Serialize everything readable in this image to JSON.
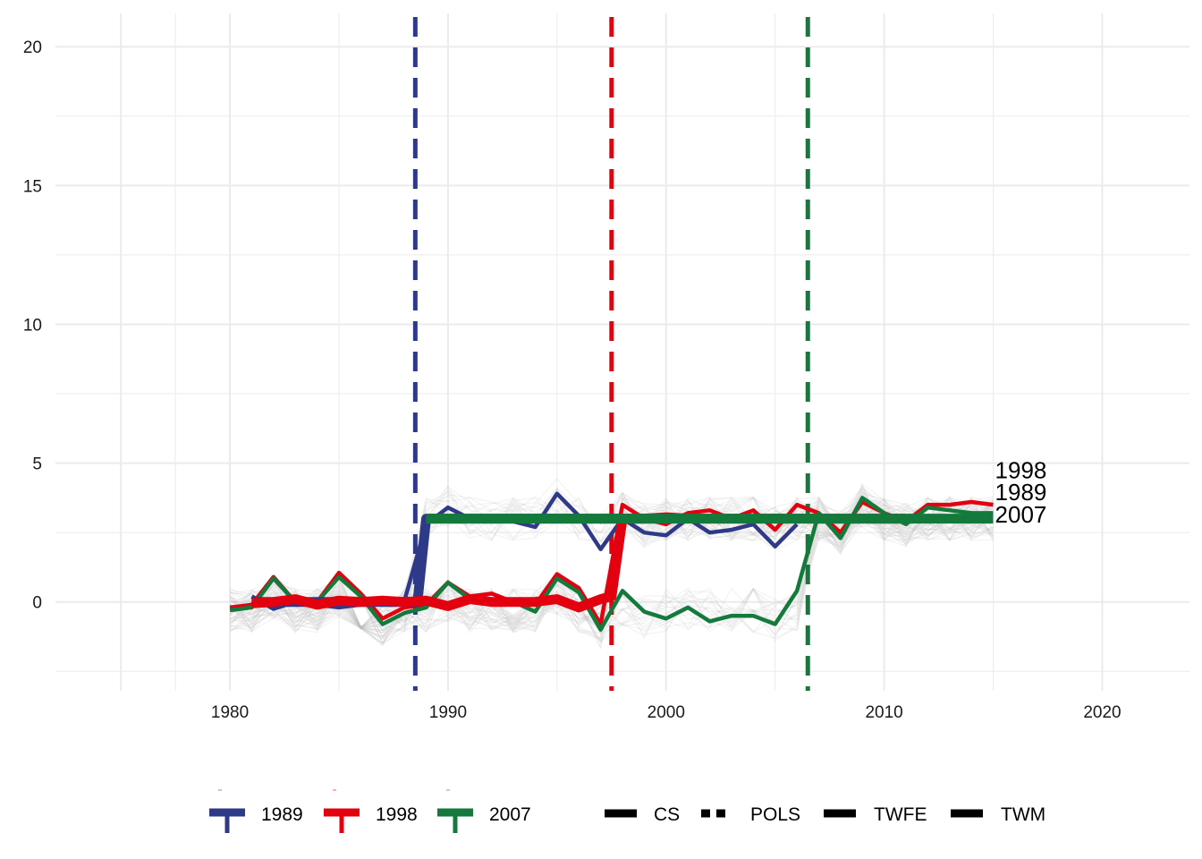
{
  "chart_data": {
    "type": "line",
    "title": "",
    "xlabel": "",
    "ylabel": "",
    "xlim": [
      1972,
      2024
    ],
    "ylim": [
      -3.2,
      21.2
    ],
    "x_ticks": [
      1980,
      1990,
      2000,
      2010,
      2020
    ],
    "y_ticks": [
      0,
      5,
      10,
      15,
      20
    ],
    "x_tick_labels": [
      "1980",
      "1990",
      "2000",
      "2010",
      "2020"
    ],
    "y_tick_labels": [
      "0",
      "5",
      "10",
      "15",
      "20"
    ],
    "grid": true,
    "legend_position": "bottom",
    "background_series": {
      "description_hidden": true,
      "count": 60,
      "color": "#bdbdbd",
      "x_start": 1980,
      "x_end": 2015
    },
    "series": [
      {
        "name": "1989",
        "color": "#2e3a87",
        "x": [
          1981,
          1982,
          1983,
          1984,
          1985,
          1986,
          1987,
          1988,
          1989,
          1990,
          1991,
          1992,
          1993,
          1994,
          1995,
          1996,
          1997,
          1998,
          1999,
          2000,
          2001,
          2002,
          2003,
          2004,
          2005,
          2006
        ],
        "y": [
          0.2,
          -0.25,
          0.0,
          -0.1,
          -0.2,
          -0.1,
          0.1,
          0.05,
          2.8,
          3.4,
          3.0,
          2.9,
          2.9,
          2.7,
          3.9,
          3.1,
          1.9,
          3.0,
          2.5,
          2.4,
          3.0,
          2.5,
          2.6,
          2.8,
          2.0,
          2.8
        ]
      },
      {
        "name": "1998",
        "color": "#e3000f",
        "x": [
          1980,
          1981,
          1982,
          1983,
          1984,
          1985,
          1986,
          1987,
          1988,
          1989,
          1990,
          1991,
          1992,
          1993,
          1994,
          1995,
          1996,
          1997,
          1998,
          1999,
          2000,
          2001,
          2002,
          2003,
          2004,
          2005,
          2006,
          2007,
          2008,
          2009,
          2010,
          2011,
          2012,
          2013,
          2014,
          2015
        ],
        "y": [
          -0.2,
          -0.1,
          0.9,
          0.0,
          0.0,
          1.05,
          0.3,
          -0.6,
          -0.2,
          -0.1,
          0.7,
          0.2,
          0.3,
          0.0,
          -0.1,
          1.0,
          0.5,
          -0.8,
          3.5,
          3.0,
          2.8,
          3.2,
          3.3,
          3.0,
          3.3,
          2.6,
          3.5,
          3.2,
          2.5,
          3.6,
          3.2,
          2.9,
          3.5,
          3.5,
          3.6,
          3.5
        ]
      },
      {
        "name": "2007",
        "color": "#137a3c",
        "x": [
          1980,
          1981,
          1982,
          1983,
          1984,
          1985,
          1986,
          1987,
          1988,
          1989,
          1990,
          1991,
          1992,
          1993,
          1994,
          1995,
          1996,
          1997,
          1998,
          1999,
          2000,
          2001,
          2002,
          2003,
          2004,
          2005,
          2006,
          2007,
          2008,
          2009,
          2010,
          2011,
          2012,
          2013,
          2014,
          2015
        ],
        "y": [
          -0.3,
          -0.2,
          0.85,
          0.0,
          0.0,
          0.9,
          0.2,
          -0.8,
          -0.4,
          -0.2,
          0.7,
          0.1,
          0.1,
          0.0,
          -0.35,
          0.85,
          0.35,
          -1.0,
          0.4,
          -0.35,
          -0.6,
          -0.2,
          -0.7,
          -0.5,
          -0.5,
          -0.8,
          0.4,
          3.2,
          2.3,
          3.75,
          3.2,
          2.8,
          3.4,
          3.3,
          3.2,
          3.2
        ]
      }
    ],
    "estimate_segments": [
      {
        "name": "1989",
        "color": "#2e3a87",
        "x": [
          1981,
          1982,
          1983,
          1984,
          1985,
          1986,
          1987,
          1988,
          1988.6,
          1989,
          1990,
          1991,
          1992,
          1993,
          1994,
          1995,
          1996,
          1997,
          1998,
          1999,
          2000
        ],
        "y": [
          0,
          0,
          0,
          0,
          0,
          0,
          0,
          0,
          0,
          3,
          3,
          3,
          3,
          3,
          3,
          3,
          3,
          3,
          3,
          3,
          3
        ]
      },
      {
        "name": "1998",
        "color": "#e3000f",
        "x": [
          1981,
          1982,
          1983,
          1984,
          1985,
          1986,
          1987,
          1988,
          1989,
          1990,
          1991,
          1992,
          1993,
          1994,
          1995,
          1996,
          1997,
          1997.5,
          1998,
          1999,
          2000,
          2001,
          2002,
          2003,
          2004,
          2005,
          2006,
          2007,
          2008,
          2009,
          2010,
          2011
        ],
        "y": [
          -0.05,
          0.0,
          0.1,
          -0.1,
          0.05,
          0.0,
          0.05,
          0.0,
          0.05,
          -0.15,
          0.1,
          0.0,
          0.0,
          0.0,
          0.1,
          -0.2,
          0.1,
          0.2,
          3.0,
          3.0,
          3.05,
          3.0,
          3.0,
          3.0,
          3.0,
          3.0,
          3.0,
          3.0,
          3.0,
          3.0,
          3.0,
          3.0
        ]
      },
      {
        "name": "2007",
        "color": "#137a3c",
        "x": [
          1989,
          1990,
          1991,
          1992,
          1993,
          1994,
          1995,
          1996,
          1997,
          1998,
          1999,
          2000,
          2001,
          2002,
          2003,
          2004,
          2005,
          2006,
          2007,
          2008,
          2009,
          2010,
          2011,
          2012,
          2013,
          2014,
          2015
        ],
        "y": [
          3,
          3,
          3,
          3,
          3,
          3,
          3,
          3,
          3,
          3,
          3,
          3,
          3,
          3,
          3,
          3,
          3,
          3,
          3,
          3,
          3,
          3,
          3,
          3,
          3,
          3,
          3
        ]
      }
    ],
    "vlines": [
      {
        "x": 1988.5,
        "color": "#2e3a87"
      },
      {
        "x": 1997.5,
        "color": "#e3000f"
      },
      {
        "x": 2006.5,
        "color": "#137a3c"
      }
    ],
    "end_labels": [
      {
        "text": "1998",
        "x": 2015,
        "y": 4.75
      },
      {
        "text": "1989",
        "x": 2015,
        "y": 3.95
      },
      {
        "text": "2007",
        "x": 2015,
        "y": 3.15
      }
    ],
    "legend": {
      "cohorts": [
        {
          "label": "1989",
          "color": "#2e3a87"
        },
        {
          "label": "1998",
          "color": "#e3000f"
        },
        {
          "label": "2007",
          "color": "#137a3c"
        }
      ],
      "methods": [
        {
          "label": "CS",
          "style": "dashed"
        },
        {
          "label": "POLS",
          "style": "dashed-short"
        },
        {
          "label": "TWFE",
          "style": "solid"
        },
        {
          "label": "TWM",
          "style": "solid"
        }
      ]
    }
  }
}
